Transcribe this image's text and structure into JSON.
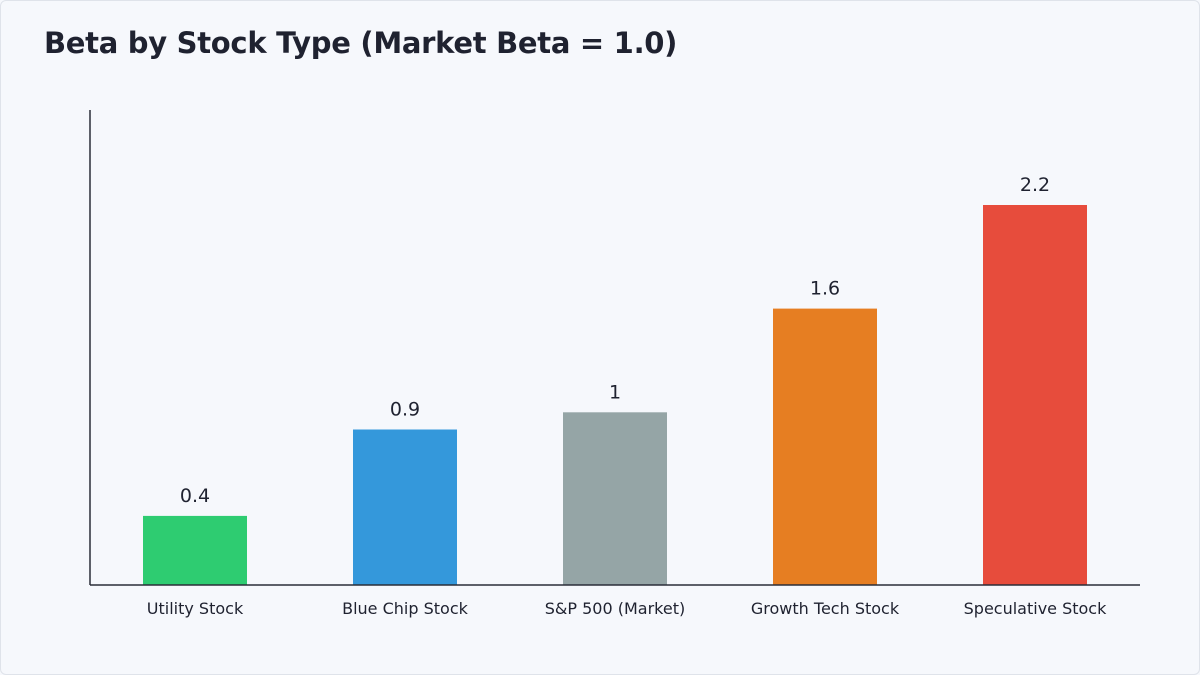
{
  "chart_data": {
    "type": "bar",
    "title": "Beta by Stock Type (Market Beta = 1.0)",
    "xlabel": "",
    "ylabel": "",
    "categories": [
      "Utility Stock",
      "Blue Chip Stock",
      "S&P 500 (Market)",
      "Growth Tech Stock",
      "Speculative Stock"
    ],
    "values": [
      0.4,
      0.9,
      1,
      1.6,
      2.2
    ],
    "value_labels": [
      "0.4",
      "0.9",
      "1",
      "1.6",
      "2.2"
    ],
    "colors": [
      "#2ecc71",
      "#3498db",
      "#95a5a6",
      "#e67e22",
      "#e74c3c"
    ],
    "ylim": [
      0,
      2.75
    ],
    "grid": false,
    "legend": "none"
  }
}
